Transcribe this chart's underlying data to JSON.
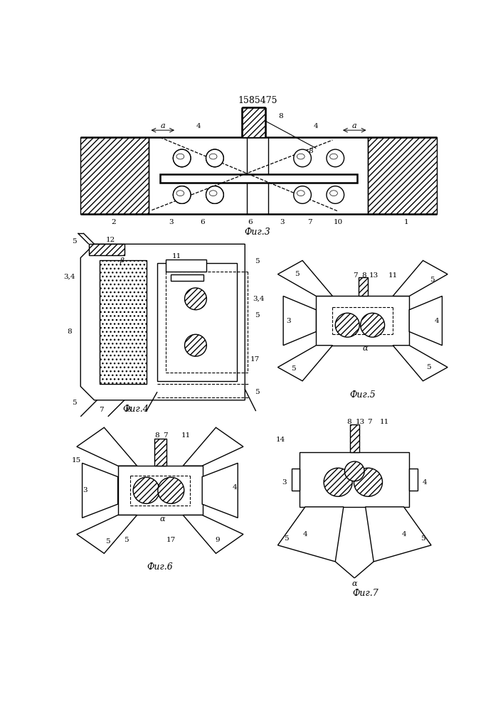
{
  "title": "1585475",
  "fig3_label": "Фиг.3",
  "fig4_label": "Фиг.4",
  "fig5_label": "Фиг.5",
  "fig6_label": "Фиг.6",
  "fig7_label": "Фиг.7",
  "bg_color": "#ffffff"
}
